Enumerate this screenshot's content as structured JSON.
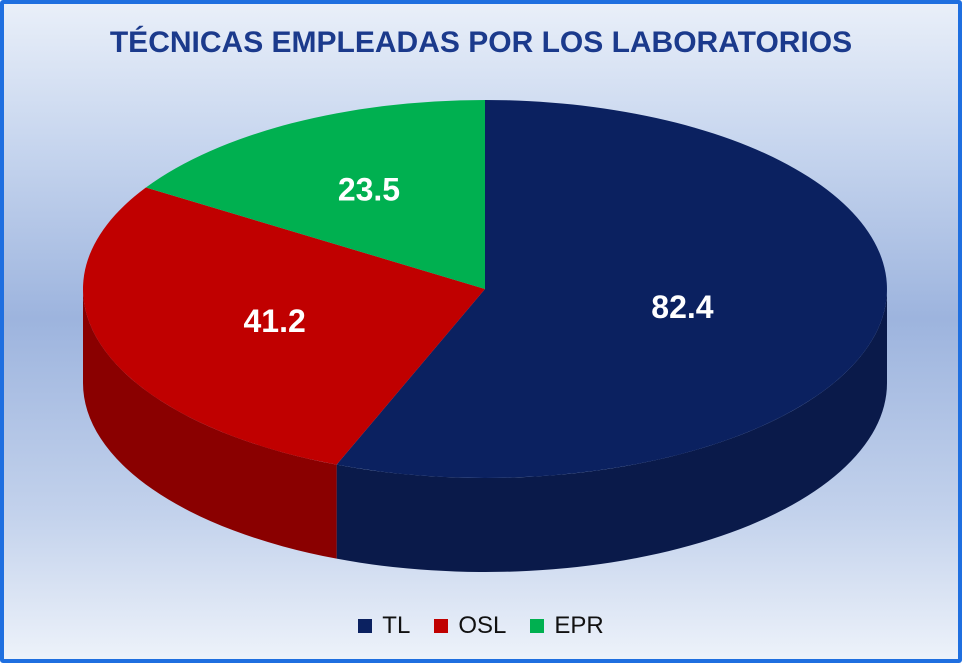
{
  "chart_data": {
    "type": "pie",
    "title": "TÉCNICAS EMPLEADAS POR LOS LABORATORIOS",
    "categories": [
      "TL",
      "OSL",
      "EPR"
    ],
    "values": [
      82.4,
      41.2,
      23.5
    ],
    "labels": [
      "82.4",
      "41.2",
      "23.5"
    ],
    "colors": [
      "#0b2160",
      "#c00000",
      "#00b050"
    ],
    "side_colors": [
      "#0a1a4a",
      "#8a0000",
      "#007a36"
    ],
    "legend_position": "bottom",
    "style": "3d"
  }
}
